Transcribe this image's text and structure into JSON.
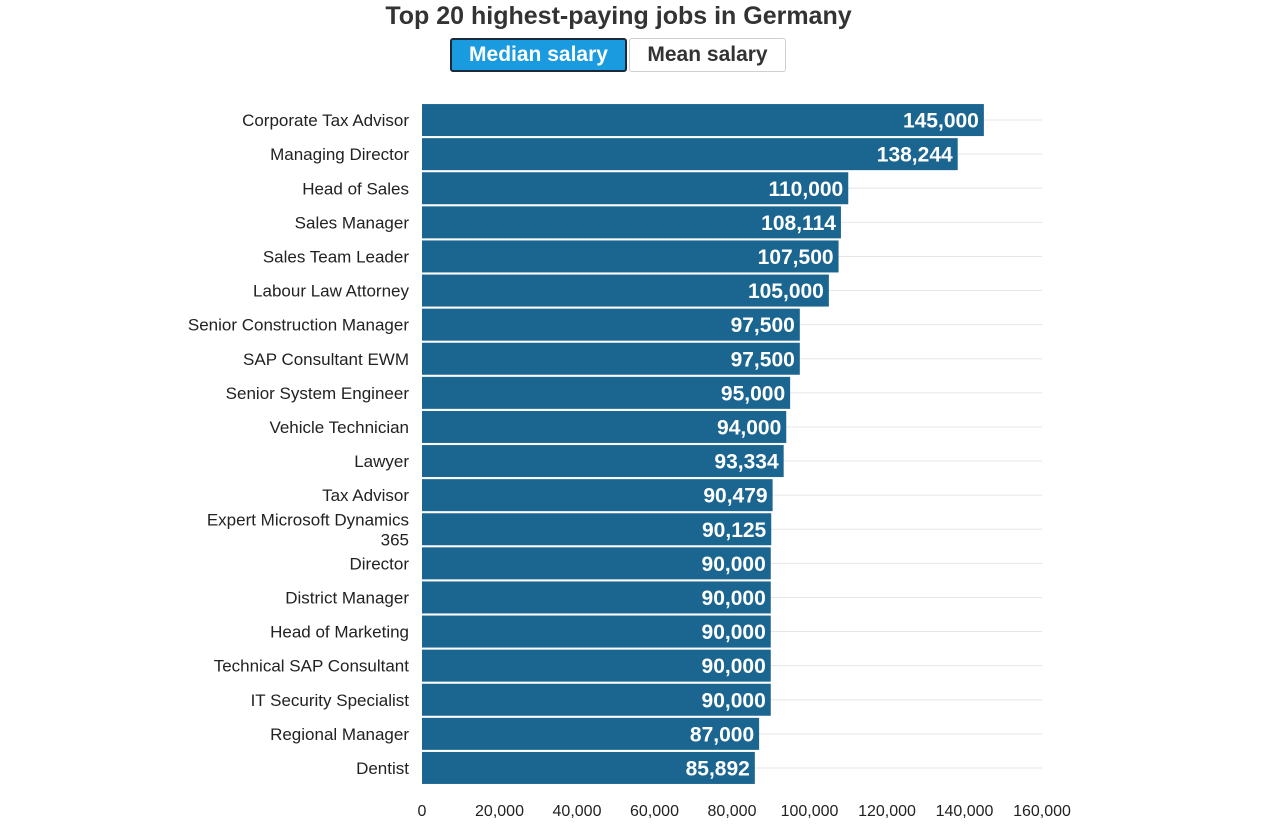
{
  "header": {
    "title": "Top 20 highest-paying jobs in Germany",
    "toggle_median": "Median salary",
    "toggle_mean": "Mean salary"
  },
  "colors": {
    "bar": "#1b6591",
    "active_toggle": "#1a9be0",
    "grid": "#e6e6e6"
  },
  "chart_data": {
    "type": "bar",
    "orientation": "horizontal",
    "title": "Top 20 highest-paying jobs in Germany",
    "categories": [
      "Corporate Tax Advisor",
      "Managing Director",
      "Head of Sales",
      "Sales Manager",
      "Sales Team Leader",
      "Labour Law Attorney",
      "Senior Construction Manager",
      "SAP Consultant EWM",
      "Senior System Engineer",
      "Vehicle Technician",
      "Lawyer",
      "Tax Advisor",
      "Expert Microsoft Dynamics 365",
      "Director",
      "District Manager",
      "Head of Marketing",
      "Technical SAP Consultant",
      "IT Security Specialist",
      "Regional Manager",
      "Dentist"
    ],
    "values": [
      145000,
      138244,
      110000,
      108114,
      107500,
      105000,
      97500,
      97500,
      95000,
      94000,
      93334,
      90479,
      90125,
      90000,
      90000,
      90000,
      90000,
      90000,
      87000,
      85892
    ],
    "value_labels": [
      "145,000",
      "138,244",
      "110,000",
      "108,114",
      "107,500",
      "105,000",
      "97,500",
      "97,500",
      "95,000",
      "94,000",
      "93,334",
      "90,479",
      "90,125",
      "90,000",
      "90,000",
      "90,000",
      "90,000",
      "90,000",
      "87,000",
      "85,892"
    ],
    "xlim": [
      0,
      160000
    ],
    "xticks": [
      0,
      20000,
      40000,
      60000,
      80000,
      100000,
      120000,
      140000,
      160000
    ],
    "xtick_labels": [
      "0",
      "20,000",
      "40,000",
      "60,000",
      "80,000",
      "100,000",
      "120,000",
      "140,000",
      "160,000"
    ],
    "grid": true,
    "xlabel": "",
    "ylabel": ""
  }
}
